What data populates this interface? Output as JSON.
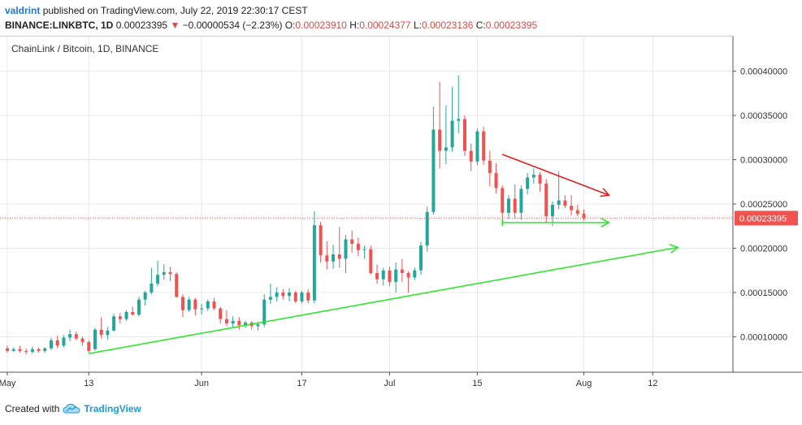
{
  "header": {
    "author": "valdrint",
    "published": "published on TradingView.com, July 22, 2019 22:30:17 CEST",
    "symbol": "BINANCE:LINKBTC, 1D",
    "last": "0.00023395",
    "change_arrow": "▼",
    "change": "−0.00000534 (−2.23%)",
    "o_label": "O:",
    "o": "0.00023910",
    "h_label": "H:",
    "h": "0.00024377",
    "l_label": "L:",
    "l": "0.00023136",
    "c_label": "C:",
    "c": "0.00023395"
  },
  "footer": {
    "created_with": "Created with",
    "brand": "TradingView",
    "logo_icon": "tradingview-cloud-icon"
  },
  "colors": {
    "up": "#26a69a",
    "down": "#ef5350",
    "trend_green": "#2ee62e",
    "trend_red": "#e02020",
    "price_line": "#ef5350",
    "grid": "#e8e8e8"
  },
  "chart_data": {
    "type": "candlestick",
    "title": "ChainLink / Bitcoin, 1D, BINANCE",
    "price_label": "0.00023395",
    "ylim": [
      6e-05,
      0.00044
    ],
    "y_ticks": [
      "0.00010000",
      "0.00015000",
      "0.00020000",
      "0.00025000",
      "0.00030000",
      "0.00035000",
      "0.00040000"
    ],
    "y_tick_values": [
      0.0001,
      0.00015,
      0.0002,
      0.00025,
      0.0003,
      0.00035,
      0.0004
    ],
    "x_ticks": [
      {
        "label": "May",
        "day": 0
      },
      {
        "label": "13",
        "day": 13
      },
      {
        "label": "Jun",
        "day": 31
      },
      {
        "label": "17",
        "day": 47
      },
      {
        "label": "Jul",
        "day": 61
      },
      {
        "label": "15",
        "day": 75
      },
      {
        "label": "Aug",
        "day": 92
      },
      {
        "label": "12",
        "day": 103
      }
    ],
    "x_day_range": [
      0,
      110
    ],
    "candles": [
      {
        "d": 0,
        "o": 8.7e-05,
        "h": 9e-05,
        "l": 8.2e-05,
        "c": 8.4e-05
      },
      {
        "d": 1,
        "o": 8.4e-05,
        "h": 8.8e-05,
        "l": 8.3e-05,
        "c": 8.6e-05
      },
      {
        "d": 2,
        "o": 8.6e-05,
        "h": 9e-05,
        "l": 8.2e-05,
        "c": 8.4e-05
      },
      {
        "d": 3,
        "o": 8.4e-05,
        "h": 8.7e-05,
        "l": 8e-05,
        "c": 8.3e-05
      },
      {
        "d": 4,
        "o": 8.3e-05,
        "h": 8.9e-05,
        "l": 8.1e-05,
        "c": 8.6e-05
      },
      {
        "d": 5,
        "o": 8.6e-05,
        "h": 8.8e-05,
        "l": 8.2e-05,
        "c": 8.4e-05
      },
      {
        "d": 6,
        "o": 8.4e-05,
        "h": 8.8e-05,
        "l": 8.2e-05,
        "c": 8.7e-05
      },
      {
        "d": 7,
        "o": 8.7e-05,
        "h": 9.9e-05,
        "l": 8.5e-05,
        "c": 9.6e-05
      },
      {
        "d": 8,
        "o": 9.6e-05,
        "h": 0.000101,
        "l": 8.7e-05,
        "c": 9e-05
      },
      {
        "d": 9,
        "o": 9e-05,
        "h": 0.000102,
        "l": 8.8e-05,
        "c": 9.9e-05
      },
      {
        "d": 10,
        "o": 9.9e-05,
        "h": 0.000108,
        "l": 9.5e-05,
        "c": 0.000103
      },
      {
        "d": 11,
        "o": 0.000103,
        "h": 0.000106,
        "l": 9.6e-05,
        "c": 9.8e-05
      },
      {
        "d": 12,
        "o": 9.8e-05,
        "h": 0.0001,
        "l": 9e-05,
        "c": 9.4e-05
      },
      {
        "d": 13,
        "o": 9.4e-05,
        "h": 9.6e-05,
        "l": 8.2e-05,
        "c": 8.4e-05
      },
      {
        "d": 14,
        "o": 8.6e-05,
        "h": 0.00011,
        "l": 8.4e-05,
        "c": 0.000108
      },
      {
        "d": 15,
        "o": 0.000108,
        "h": 0.000122,
        "l": 9.8e-05,
        "c": 0.000102
      },
      {
        "d": 16,
        "o": 0.000102,
        "h": 0.000111,
        "l": 9.7e-05,
        "c": 0.000107
      },
      {
        "d": 17,
        "o": 0.000107,
        "h": 0.000126,
        "l": 0.000106,
        "c": 0.000123
      },
      {
        "d": 18,
        "o": 0.000123,
        "h": 0.000127,
        "l": 0.000115,
        "c": 0.00012
      },
      {
        "d": 19,
        "o": 0.00012,
        "h": 0.00013,
        "l": 0.000118,
        "c": 0.000128
      },
      {
        "d": 20,
        "o": 0.000128,
        "h": 0.000134,
        "l": 0.000124,
        "c": 0.000125
      },
      {
        "d": 21,
        "o": 0.000125,
        "h": 0.000145,
        "l": 0.000123,
        "c": 0.000142
      },
      {
        "d": 22,
        "o": 0.000142,
        "h": 0.000152,
        "l": 0.000135,
        "c": 0.00015
      },
      {
        "d": 23,
        "o": 0.00015,
        "h": 0.000178,
        "l": 0.000148,
        "c": 0.00016
      },
      {
        "d": 24,
        "o": 0.00016,
        "h": 0.000186,
        "l": 0.000157,
        "c": 0.00017
      },
      {
        "d": 25,
        "o": 0.00017,
        "h": 0.000182,
        "l": 0.000164,
        "c": 0.000173
      },
      {
        "d": 26,
        "o": 0.000173,
        "h": 0.000179,
        "l": 0.000163,
        "c": 0.000171
      },
      {
        "d": 27,
        "o": 0.000171,
        "h": 0.000173,
        "l": 0.000144,
        "c": 0.000145
      },
      {
        "d": 28,
        "o": 0.000145,
        "h": 0.000148,
        "l": 0.000122,
        "c": 0.00013
      },
      {
        "d": 29,
        "o": 0.00013,
        "h": 0.000145,
        "l": 0.000128,
        "c": 0.000142
      },
      {
        "d": 30,
        "o": 0.000142,
        "h": 0.000144,
        "l": 0.000124,
        "c": 0.000131
      },
      {
        "d": 31,
        "o": 0.000131,
        "h": 0.000137,
        "l": 0.000125,
        "c": 0.000132
      },
      {
        "d": 32,
        "o": 0.000132,
        "h": 0.000142,
        "l": 0.000129,
        "c": 0.00014
      },
      {
        "d": 33,
        "o": 0.00014,
        "h": 0.000144,
        "l": 0.00013,
        "c": 0.000132
      },
      {
        "d": 34,
        "o": 0.000132,
        "h": 0.000134,
        "l": 0.000115,
        "c": 0.00012
      },
      {
        "d": 35,
        "o": 0.00012,
        "h": 0.00013,
        "l": 0.000112,
        "c": 0.000115
      },
      {
        "d": 36,
        "o": 0.000115,
        "h": 0.000123,
        "l": 0.00011,
        "c": 0.000118
      },
      {
        "d": 37,
        "o": 0.000118,
        "h": 0.000122,
        "l": 0.000108,
        "c": 0.000113
      },
      {
        "d": 38,
        "o": 0.000113,
        "h": 0.000118,
        "l": 0.00011,
        "c": 0.000116
      },
      {
        "d": 39,
        "o": 0.000116,
        "h": 0.000118,
        "l": 0.000108,
        "c": 0.000112
      },
      {
        "d": 40,
        "o": 0.000112,
        "h": 0.000117,
        "l": 0.000107,
        "c": 0.000114
      },
      {
        "d": 41,
        "o": 0.000114,
        "h": 0.000148,
        "l": 0.000111,
        "c": 0.000142
      },
      {
        "d": 42,
        "o": 0.000142,
        "h": 0.00016,
        "l": 0.000137,
        "c": 0.000145
      },
      {
        "d": 43,
        "o": 0.000145,
        "h": 0.000156,
        "l": 0.00014,
        "c": 0.00015
      },
      {
        "d": 44,
        "o": 0.00015,
        "h": 0.000154,
        "l": 0.000142,
        "c": 0.000146
      },
      {
        "d": 45,
        "o": 0.000146,
        "h": 0.000155,
        "l": 0.00014,
        "c": 0.00015
      },
      {
        "d": 46,
        "o": 0.00015,
        "h": 0.000152,
        "l": 0.000138,
        "c": 0.00014
      },
      {
        "d": 47,
        "o": 0.00014,
        "h": 0.000152,
        "l": 0.000138,
        "c": 0.00015
      },
      {
        "d": 48,
        "o": 0.00015,
        "h": 0.000154,
        "l": 0.000138,
        "c": 0.000141
      },
      {
        "d": 49,
        "o": 0.000141,
        "h": 0.000242,
        "l": 0.000138,
        "c": 0.000226
      },
      {
        "d": 50,
        "o": 0.000226,
        "h": 0.00023,
        "l": 0.000184,
        "c": 0.000192
      },
      {
        "d": 51,
        "o": 0.000192,
        "h": 0.000208,
        "l": 0.000176,
        "c": 0.000185
      },
      {
        "d": 52,
        "o": 0.000185,
        "h": 0.000204,
        "l": 0.000177,
        "c": 0.000193
      },
      {
        "d": 53,
        "o": 0.000193,
        "h": 0.000224,
        "l": 0.000178,
        "c": 0.000188
      },
      {
        "d": 54,
        "o": 0.000188,
        "h": 0.000215,
        "l": 0.000172,
        "c": 0.00021
      },
      {
        "d": 55,
        "o": 0.00021,
        "h": 0.00022,
        "l": 0.000195,
        "c": 0.000205
      },
      {
        "d": 56,
        "o": 0.000205,
        "h": 0.000212,
        "l": 0.000191,
        "c": 0.000198
      },
      {
        "d": 57,
        "o": 0.000198,
        "h": 0.000203,
        "l": 0.000188,
        "c": 0.000199
      },
      {
        "d": 58,
        "o": 0.000199,
        "h": 0.000203,
        "l": 0.00017,
        "c": 0.000172
      },
      {
        "d": 59,
        "o": 0.000172,
        "h": 0.000182,
        "l": 0.00016,
        "c": 0.000165
      },
      {
        "d": 60,
        "o": 0.000165,
        "h": 0.000178,
        "l": 0.000158,
        "c": 0.000175
      },
      {
        "d": 61,
        "o": 0.000175,
        "h": 0.000179,
        "l": 0.000157,
        "c": 0.000162
      },
      {
        "d": 62,
        "o": 0.000162,
        "h": 0.000184,
        "l": 0.00015,
        "c": 0.000176
      },
      {
        "d": 63,
        "o": 0.000176,
        "h": 0.000188,
        "l": 0.000162,
        "c": 0.000172
      },
      {
        "d": 64,
        "o": 0.000172,
        "h": 0.000174,
        "l": 0.00015,
        "c": 0.000167
      },
      {
        "d": 65,
        "o": 0.000167,
        "h": 0.000178,
        "l": 0.000164,
        "c": 0.000175
      },
      {
        "d": 66,
        "o": 0.000175,
        "h": 0.000207,
        "l": 0.00017,
        "c": 0.000203
      },
      {
        "d": 67,
        "o": 0.000203,
        "h": 0.000247,
        "l": 0.000196,
        "c": 0.000241
      },
      {
        "d": 68,
        "o": 0.000241,
        "h": 0.00036,
        "l": 0.000238,
        "c": 0.000334
      },
      {
        "d": 69,
        "o": 0.000334,
        "h": 0.000388,
        "l": 0.00029,
        "c": 0.00031
      },
      {
        "d": 70,
        "o": 0.00031,
        "h": 0.000361,
        "l": 0.000295,
        "c": 0.000314
      },
      {
        "d": 71,
        "o": 0.000314,
        "h": 0.000382,
        "l": 0.000309,
        "c": 0.000344
      },
      {
        "d": 72,
        "o": 0.000344,
        "h": 0.000395,
        "l": 0.00033,
        "c": 0.000346
      },
      {
        "d": 73,
        "o": 0.000346,
        "h": 0.00035,
        "l": 0.000304,
        "c": 0.00031
      },
      {
        "d": 74,
        "o": 0.00031,
        "h": 0.000318,
        "l": 0.000287,
        "c": 0.000298
      },
      {
        "d": 75,
        "o": 0.000298,
        "h": 0.000335,
        "l": 0.000294,
        "c": 0.000332
      },
      {
        "d": 76,
        "o": 0.000332,
        "h": 0.000337,
        "l": 0.000294,
        "c": 0.000299
      },
      {
        "d": 77,
        "o": 0.000299,
        "h": 0.00031,
        "l": 0.00027,
        "c": 0.000285
      },
      {
        "d": 78,
        "o": 0.000285,
        "h": 0.000296,
        "l": 0.000262,
        "c": 0.000268
      },
      {
        "d": 79,
        "o": 0.000268,
        "h": 0.000271,
        "l": 0.000228,
        "c": 0.00024
      },
      {
        "d": 80,
        "o": 0.00024,
        "h": 0.00026,
        "l": 0.000233,
        "c": 0.000256
      },
      {
        "d": 81,
        "o": 0.000256,
        "h": 0.000272,
        "l": 0.000233,
        "c": 0.00024
      },
      {
        "d": 82,
        "o": 0.00024,
        "h": 0.000271,
        "l": 0.000232,
        "c": 0.000267
      },
      {
        "d": 83,
        "o": 0.000267,
        "h": 0.000285,
        "l": 0.000261,
        "c": 0.00028
      },
      {
        "d": 84,
        "o": 0.00028,
        "h": 0.00029,
        "l": 0.000273,
        "c": 0.000283
      },
      {
        "d": 85,
        "o": 0.000283,
        "h": 0.000286,
        "l": 0.000264,
        "c": 0.000273
      },
      {
        "d": 86,
        "o": 0.000273,
        "h": 0.000278,
        "l": 0.000229,
        "c": 0.000236
      },
      {
        "d": 87,
        "o": 0.000236,
        "h": 0.000253,
        "l": 0.000225,
        "c": 0.000249
      },
      {
        "d": 88,
        "o": 0.000249,
        "h": 0.000287,
        "l": 0.000244,
        "c": 0.000254
      },
      {
        "d": 89,
        "o": 0.000254,
        "h": 0.00026,
        "l": 0.000245,
        "c": 0.000248
      },
      {
        "d": 90,
        "o": 0.000248,
        "h": 0.00026,
        "l": 0.000237,
        "c": 0.000243
      },
      {
        "d": 91,
        "o": 0.000243,
        "h": 0.000249,
        "l": 0.000236,
        "c": 0.000239
      },
      {
        "d": 92,
        "o": 0.0002391,
        "h": 0.0002438,
        "l": 0.0002314,
        "c": 0.000234
      }
    ],
    "annotations": [
      {
        "kind": "support-trendline",
        "color": "green",
        "from": {
          "day": 13,
          "price": 8.1e-05
        },
        "to": {
          "day": 107,
          "price": 0.000201
        }
      },
      {
        "kind": "descending-resistance",
        "color": "red",
        "from": {
          "day": 79,
          "price": 0.000306
        },
        "to": {
          "day": 96,
          "price": 0.00026
        }
      },
      {
        "kind": "horizontal-support",
        "color": "green",
        "from": {
          "day": 79,
          "price": 0.000229
        },
        "to": {
          "day": 96,
          "price": 0.000229
        }
      }
    ]
  }
}
